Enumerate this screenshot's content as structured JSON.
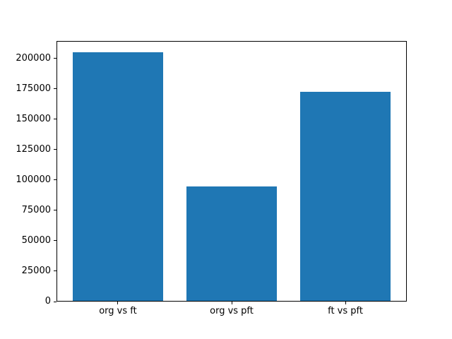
{
  "chart_data": {
    "type": "bar",
    "categories": [
      "org vs ft",
      "org vs pft",
      "ft vs pft"
    ],
    "values": [
      205000,
      95000,
      172500
    ],
    "title": "",
    "xlabel": "",
    "ylabel": "",
    "ylim": [
      0,
      214500
    ],
    "xlim": [
      -0.54,
      2.54
    ],
    "yticks": [
      0,
      25000,
      50000,
      75000,
      100000,
      125000,
      150000,
      175000,
      200000
    ],
    "ytick_labels": [
      "0",
      "25000",
      "50000",
      "75000",
      "100000",
      "125000",
      "150000",
      "175000",
      "200000"
    ],
    "bar_color": "#1f77b4",
    "bar_width_fraction": 0.8,
    "grid": false,
    "legend": null,
    "background_color": "#ffffff",
    "spine_color": "#000000",
    "tick_color": "#000000"
  }
}
